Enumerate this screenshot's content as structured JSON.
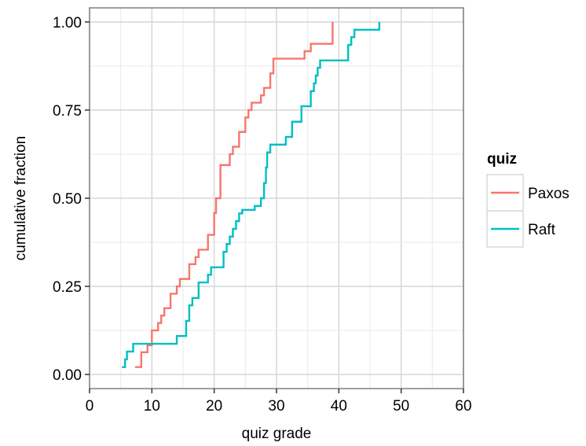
{
  "chart_data": {
    "type": "line",
    "step": true,
    "xlabel": "quiz grade",
    "ylabel": "cumulative fraction",
    "xlim": [
      0,
      60
    ],
    "ylim": [
      -0.04,
      1.04
    ],
    "x_ticks": [
      0,
      10,
      20,
      30,
      40,
      50,
      60
    ],
    "x_tick_labels": [
      "0",
      "10",
      "20",
      "30",
      "40",
      "50",
      "60"
    ],
    "y_ticks": [
      0,
      0.25,
      0.5,
      0.75,
      1.0
    ],
    "y_tick_labels": [
      "0.00",
      "0.25",
      "0.50",
      "0.75",
      "1.00"
    ],
    "grid": true,
    "legend": {
      "title": "quiz",
      "position": "right"
    },
    "series": [
      {
        "name": "Paxos",
        "color": "#F8766D",
        "points": [
          [
            7.3,
            0.021
          ],
          [
            8.3,
            0.063
          ],
          [
            9.3,
            0.083
          ],
          [
            10.0,
            0.125
          ],
          [
            11.0,
            0.146
          ],
          [
            11.5,
            0.167
          ],
          [
            12.0,
            0.188
          ],
          [
            13.0,
            0.229
          ],
          [
            14.0,
            0.25
          ],
          [
            14.5,
            0.271
          ],
          [
            16.0,
            0.313
          ],
          [
            17.0,
            0.333
          ],
          [
            17.5,
            0.354
          ],
          [
            19.0,
            0.396
          ],
          [
            20.0,
            0.458
          ],
          [
            20.3,
            0.5
          ],
          [
            21.0,
            0.594
          ],
          [
            22.5,
            0.625
          ],
          [
            23.0,
            0.646
          ],
          [
            24.0,
            0.688
          ],
          [
            25.0,
            0.729
          ],
          [
            25.5,
            0.75
          ],
          [
            26.0,
            0.771
          ],
          [
            27.5,
            0.792
          ],
          [
            28.0,
            0.813
          ],
          [
            29.0,
            0.854
          ],
          [
            29.5,
            0.896
          ],
          [
            34.5,
            0.917
          ],
          [
            35.5,
            0.938
          ],
          [
            39.0,
            1.0
          ]
        ]
      },
      {
        "name": "Raft",
        "color": "#00BFC4",
        "points": [
          [
            5.2,
            0.021
          ],
          [
            5.7,
            0.043
          ],
          [
            6.0,
            0.065
          ],
          [
            7.0,
            0.087
          ],
          [
            14.0,
            0.109
          ],
          [
            15.5,
            0.152
          ],
          [
            16.0,
            0.196
          ],
          [
            16.5,
            0.217
          ],
          [
            17.5,
            0.261
          ],
          [
            19.0,
            0.283
          ],
          [
            19.5,
            0.304
          ],
          [
            21.5,
            0.348
          ],
          [
            22.0,
            0.37
          ],
          [
            22.5,
            0.391
          ],
          [
            23.0,
            0.413
          ],
          [
            23.5,
            0.435
          ],
          [
            24.0,
            0.457
          ],
          [
            24.5,
            0.467
          ],
          [
            26.5,
            0.478
          ],
          [
            27.5,
            0.5
          ],
          [
            28.0,
            0.543
          ],
          [
            28.3,
            0.587
          ],
          [
            28.5,
            0.63
          ],
          [
            29.0,
            0.652
          ],
          [
            31.5,
            0.674
          ],
          [
            32.5,
            0.717
          ],
          [
            34.0,
            0.761
          ],
          [
            35.5,
            0.804
          ],
          [
            36.0,
            0.826
          ],
          [
            36.3,
            0.848
          ],
          [
            36.6,
            0.87
          ],
          [
            37.0,
            0.891
          ],
          [
            41.5,
            0.935
          ],
          [
            42.0,
            0.957
          ],
          [
            42.5,
            0.978
          ],
          [
            46.5,
            1.0
          ]
        ]
      }
    ]
  }
}
